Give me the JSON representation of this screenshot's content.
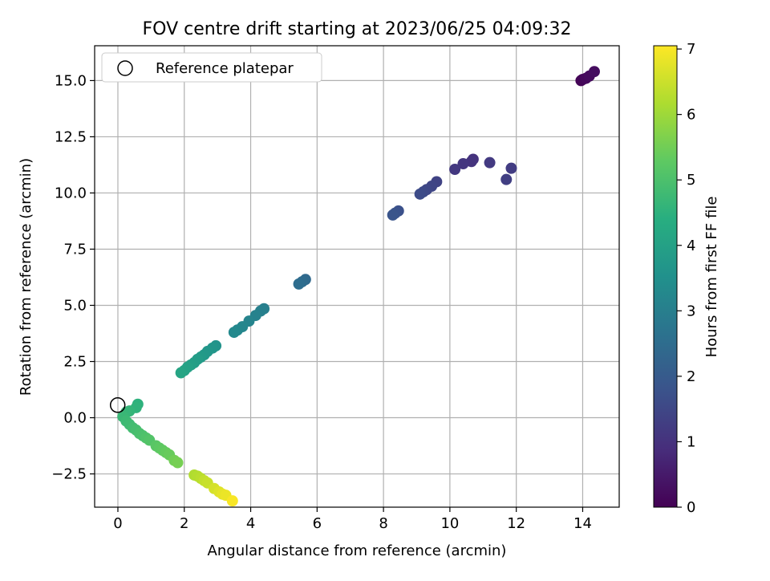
{
  "chart_data": {
    "type": "scatter",
    "title": "FOV centre drift starting at 2023/06/25 04:09:32",
    "xlabel": "Angular distance from reference (arcmin)",
    "ylabel": "Rotation from reference (arcmin)",
    "xlim": [
      -0.7,
      15.1
    ],
    "ylim": [
      -3.98,
      16.55
    ],
    "xticks": [
      0,
      2,
      4,
      6,
      8,
      10,
      12,
      14
    ],
    "xtick_labels": [
      "0",
      "2",
      "4",
      "6",
      "8",
      "10",
      "12",
      "14"
    ],
    "yticks": [
      -2.5,
      0.0,
      2.5,
      5.0,
      7.5,
      10.0,
      12.5,
      15.0
    ],
    "ytick_labels": [
      "−2.5",
      "0.0",
      "2.5",
      "5.0",
      "7.5",
      "10.0",
      "12.5",
      "15.0"
    ],
    "grid": true,
    "legend": {
      "position": "top-left",
      "entries": [
        "Reference platepar"
      ]
    },
    "reference_point": {
      "x": 0,
      "y": 0,
      "label": "Reference platepar"
    },
    "colorbar": {
      "label": "Hours from first FF file",
      "colormap": "viridis",
      "range": [
        0,
        7.05
      ],
      "ticks": [
        0,
        1,
        2,
        3,
        4,
        5,
        6,
        7
      ],
      "tick_labels": [
        "0",
        "1",
        "2",
        "3",
        "4",
        "5",
        "6",
        "7"
      ]
    },
    "points": [
      [
        13.95,
        15.0,
        0.05
      ],
      [
        14.0,
        15.05,
        0.1
      ],
      [
        14.1,
        15.1,
        0.15
      ],
      [
        14.2,
        15.2,
        0.2
      ],
      [
        14.35,
        15.4,
        0.25
      ],
      [
        10.7,
        11.5,
        1.0
      ],
      [
        10.65,
        11.4,
        1.05
      ],
      [
        10.4,
        11.3,
        1.1
      ],
      [
        10.15,
        11.05,
        1.15
      ],
      [
        11.2,
        11.35,
        1.2
      ],
      [
        11.85,
        11.1,
        1.25
      ],
      [
        11.7,
        10.6,
        1.3
      ],
      [
        9.6,
        10.5,
        1.4
      ],
      [
        9.45,
        10.3,
        1.45
      ],
      [
        9.3,
        10.15,
        1.5
      ],
      [
        9.2,
        10.05,
        1.55
      ],
      [
        9.1,
        9.95,
        1.6
      ],
      [
        8.45,
        9.2,
        1.75
      ],
      [
        8.35,
        9.1,
        1.8
      ],
      [
        8.28,
        9.02,
        1.85
      ],
      [
        5.65,
        6.15,
        2.4
      ],
      [
        5.55,
        6.05,
        2.45
      ],
      [
        5.45,
        5.95,
        2.5
      ],
      [
        4.4,
        4.85,
        3.0
      ],
      [
        4.3,
        4.75,
        3.05
      ],
      [
        4.15,
        4.55,
        3.1
      ],
      [
        3.95,
        4.3,
        3.15
      ],
      [
        3.75,
        4.05,
        3.2
      ],
      [
        3.6,
        3.9,
        3.25
      ],
      [
        3.5,
        3.8,
        3.3
      ],
      [
        2.95,
        3.2,
        3.6
      ],
      [
        2.85,
        3.1,
        3.65
      ],
      [
        2.7,
        2.95,
        3.7
      ],
      [
        2.6,
        2.8,
        3.75
      ],
      [
        2.5,
        2.7,
        3.8
      ],
      [
        2.4,
        2.6,
        3.85
      ],
      [
        2.3,
        2.45,
        3.9
      ],
      [
        2.2,
        2.35,
        3.95
      ],
      [
        2.1,
        2.25,
        4.0
      ],
      [
        2.0,
        2.1,
        4.05
      ],
      [
        1.9,
        2.0,
        4.1
      ],
      [
        0.6,
        0.6,
        4.5
      ],
      [
        0.55,
        0.45,
        4.55
      ],
      [
        0.35,
        0.3,
        4.6
      ],
      [
        0.25,
        0.25,
        4.65
      ],
      [
        0.15,
        0.05,
        4.7
      ],
      [
        0.25,
        -0.15,
        4.75
      ],
      [
        0.35,
        -0.3,
        4.8
      ],
      [
        0.45,
        -0.45,
        4.85
      ],
      [
        0.55,
        -0.55,
        4.9
      ],
      [
        0.65,
        -0.7,
        4.95
      ],
      [
        0.75,
        -0.8,
        5.0
      ],
      [
        0.85,
        -0.9,
        5.05
      ],
      [
        0.95,
        -1.0,
        5.1
      ],
      [
        1.15,
        -1.25,
        5.2
      ],
      [
        1.25,
        -1.35,
        5.25
      ],
      [
        1.35,
        -1.45,
        5.3
      ],
      [
        1.45,
        -1.55,
        5.35
      ],
      [
        1.55,
        -1.65,
        5.4
      ],
      [
        1.7,
        -1.9,
        5.5
      ],
      [
        1.8,
        -2.0,
        5.55
      ],
      [
        2.3,
        -2.55,
        6.2
      ],
      [
        2.4,
        -2.6,
        6.25
      ],
      [
        2.5,
        -2.7,
        6.3
      ],
      [
        2.6,
        -2.8,
        6.4
      ],
      [
        2.7,
        -2.9,
        6.45
      ],
      [
        2.9,
        -3.15,
        6.6
      ],
      [
        3.05,
        -3.3,
        6.7
      ],
      [
        3.15,
        -3.4,
        6.8
      ],
      [
        3.25,
        -3.45,
        6.85
      ],
      [
        3.45,
        -3.7,
        7.0
      ]
    ]
  }
}
